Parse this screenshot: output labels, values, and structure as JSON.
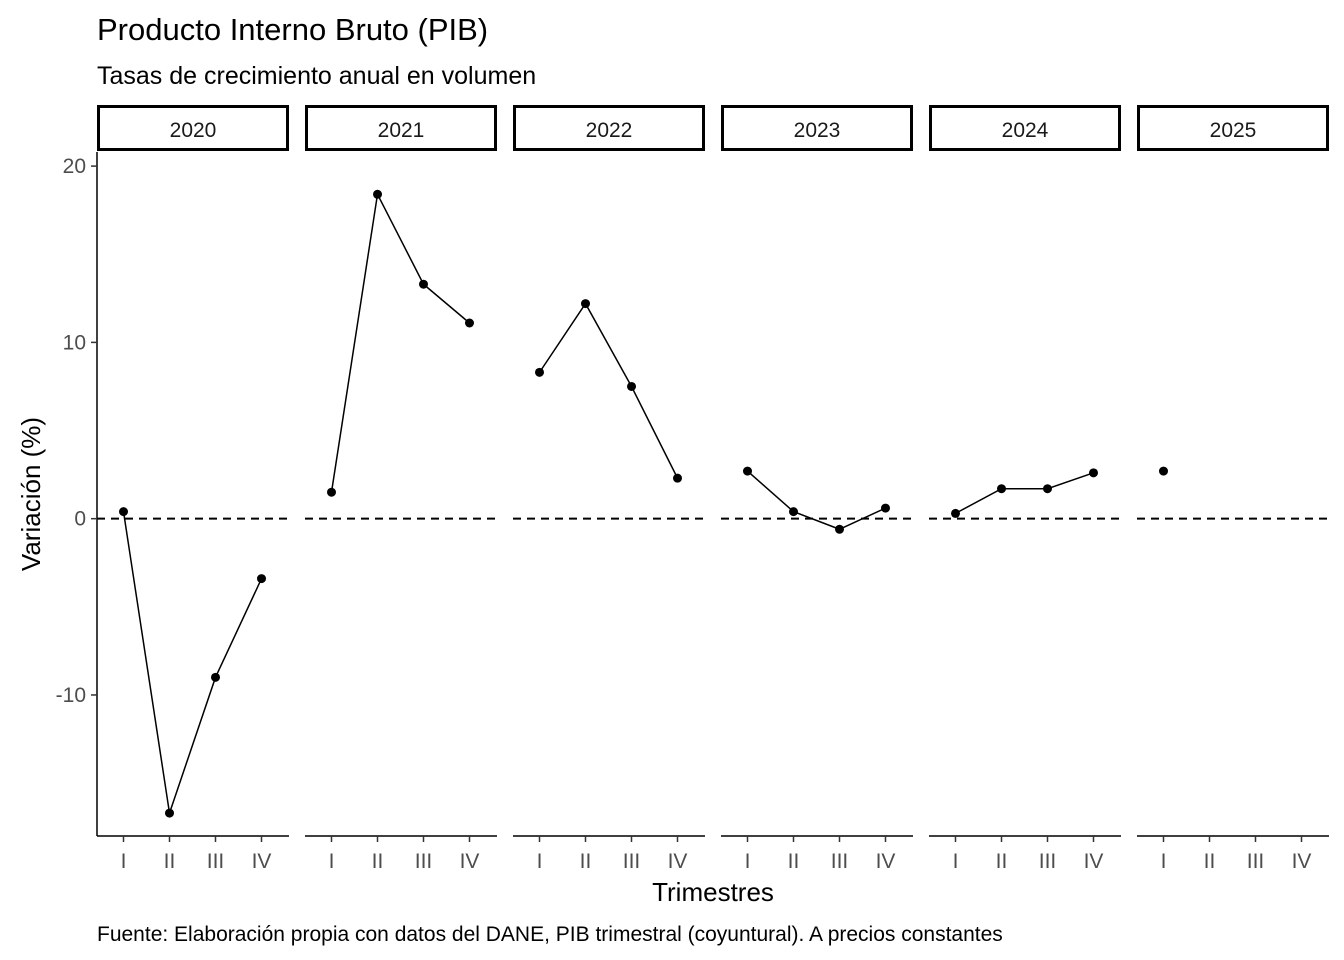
{
  "chart_data": {
    "type": "line",
    "title": "Producto Interno Bruto (PIB)",
    "subtitle": "Tasas de crecimiento anual en volumen",
    "xlabel": "Trimestres",
    "ylabel": "Variación (%)",
    "caption": "Fuente: Elaboración propia con datos del DANE, PIB trimestral (coyuntural). A precios constantes",
    "x_categories": [
      "I",
      "II",
      "III",
      "IV"
    ],
    "yticks": [
      20,
      10,
      0,
      -10
    ],
    "ylim": [
      -18,
      20.8
    ],
    "reference_line": 0,
    "facets": [
      {
        "label": "2020",
        "values": [
          0.4,
          -16.7,
          -9.0,
          -3.4
        ]
      },
      {
        "label": "2021",
        "values": [
          1.5,
          18.4,
          13.3,
          11.1
        ]
      },
      {
        "label": "2022",
        "values": [
          8.3,
          12.2,
          7.5,
          2.3
        ]
      },
      {
        "label": "2023",
        "values": [
          2.7,
          0.4,
          -0.6,
          0.6
        ]
      },
      {
        "label": "2024",
        "values": [
          0.3,
          1.7,
          1.7,
          2.6
        ]
      },
      {
        "label": "2025",
        "values": [
          2.7,
          null,
          null,
          null
        ]
      }
    ],
    "grid": false,
    "legend": "none"
  }
}
